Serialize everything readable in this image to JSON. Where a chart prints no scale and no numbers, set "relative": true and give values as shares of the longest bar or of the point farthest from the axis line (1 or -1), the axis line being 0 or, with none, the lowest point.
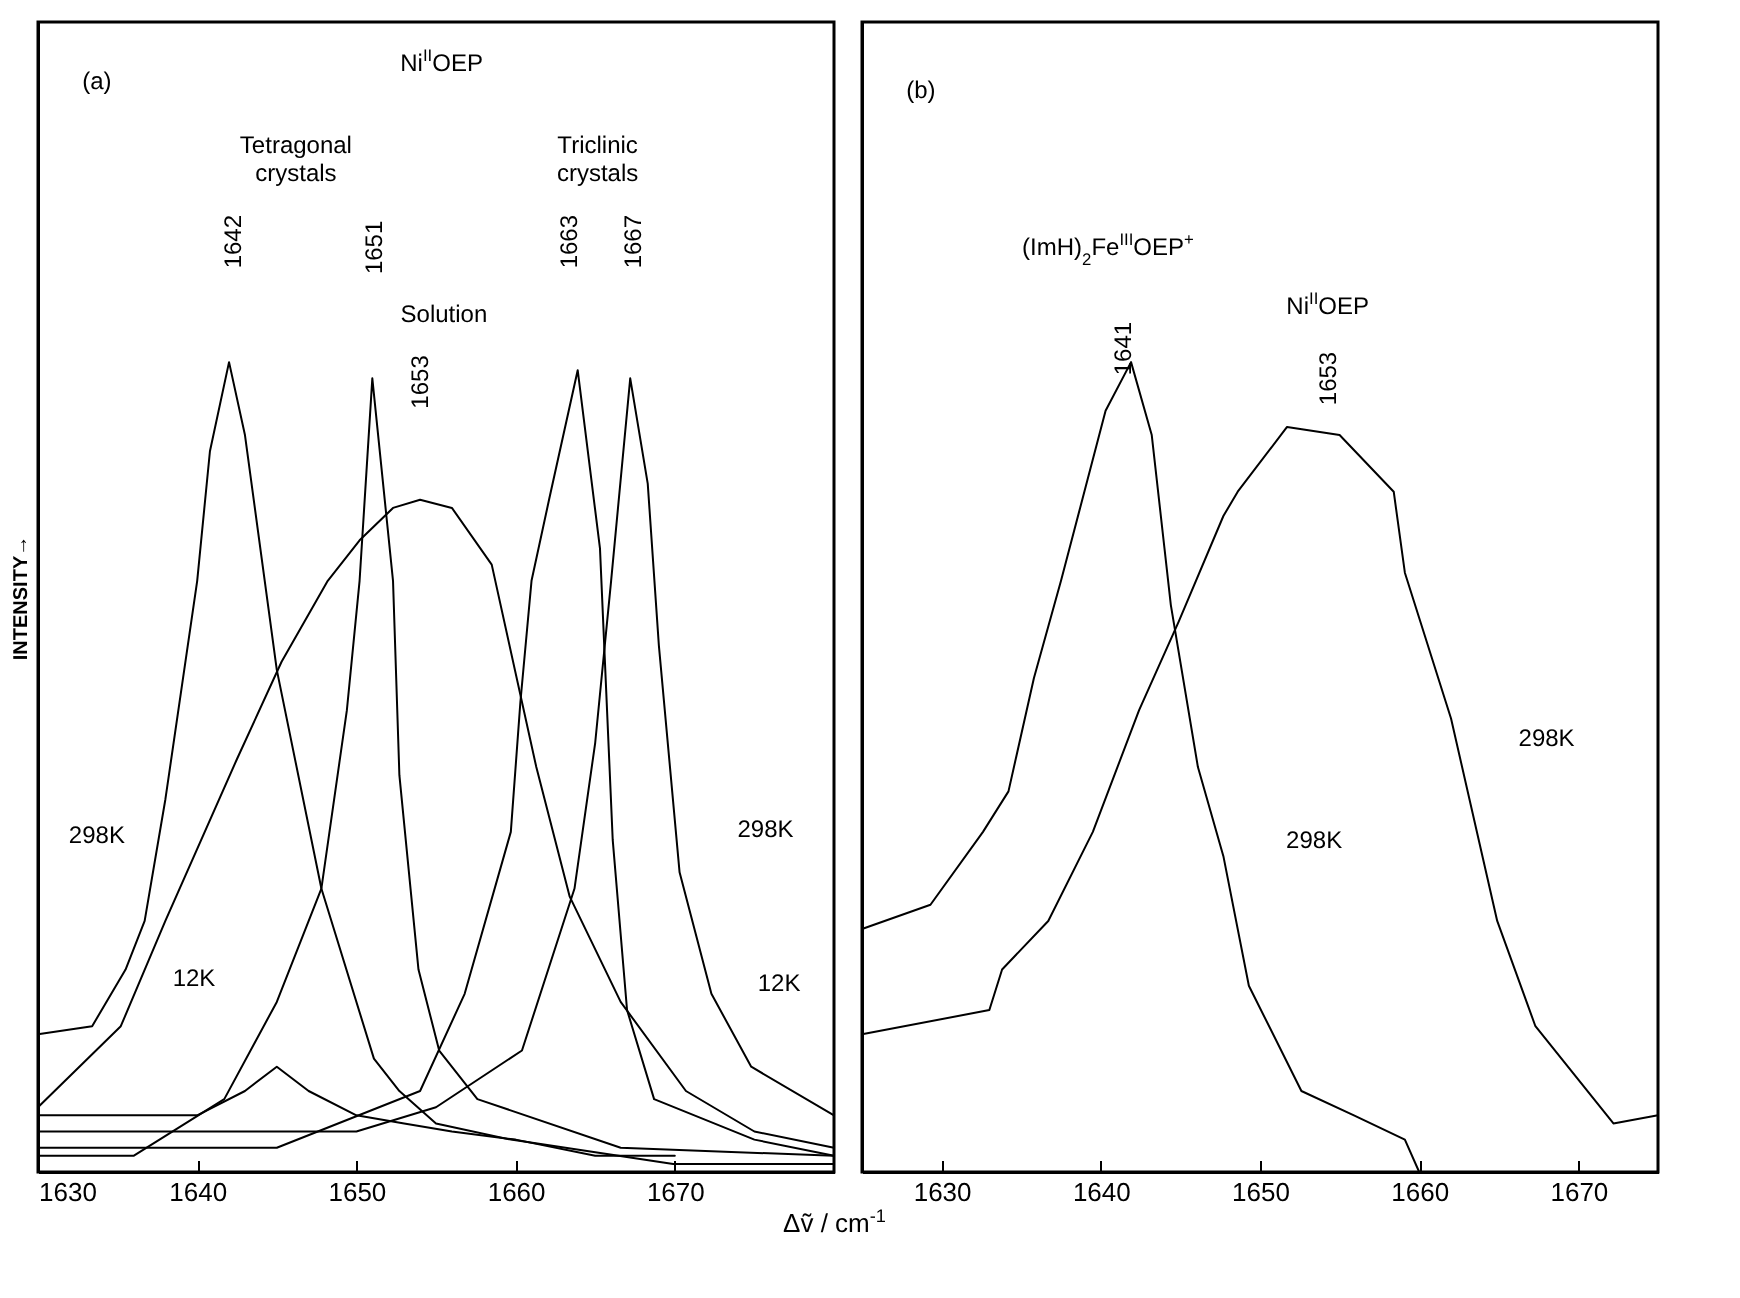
{
  "chart_data": [
    {
      "type": "line",
      "relative": true,
      "ylabel": "INTENSITY→",
      "xlabel": "Δṽ / cm$^{-1}$",
      "xlim": [
        1630,
        1680
      ],
      "xticks": [
        1630,
        1640,
        1650,
        1660,
        1670
      ],
      "tick_labels": "x",
      "annotations": [
        "(a)",
        "Ni$^{II}$OEP",
        "Tetragonal crystals",
        "Triclinic crystals",
        "1642",
        "1651",
        "1663",
        "1667",
        "Solution",
        "1653",
        "298K",
        "12K",
        "298K",
        "12K"
      ],
      "series": [
        {
          "color": "#000000",
          "x": [
            1630,
            1633.4,
            1635.5,
            1636.7,
            1638,
            1640,
            1640.8,
            1642,
            1643,
            1645,
            1647.8,
            1651.1,
            1652.7,
            1655,
            1659.7,
            1669.9,
            1680
          ],
          "values": [
            0.17,
            0.18,
            0.25,
            0.31,
            0.46,
            0.73,
            0.89,
            1.0,
            0.91,
            0.62,
            0.35,
            0.14,
            0.1,
            0.06,
            0.04,
            0.01,
            0.01
          ]
        },
        {
          "color": "#000000",
          "x": [
            1630,
            1635.2,
            1638,
            1642.5,
            1645.3,
            1648.2,
            1650.2,
            1652.3,
            1654,
            1656,
            1658.5,
            1661.3,
            1663.4,
            1666.6,
            1670.7,
            1675,
            1680
          ],
          "values": [
            0.08,
            0.18,
            0.31,
            0.51,
            0.63,
            0.73,
            0.78,
            0.82,
            0.83,
            0.82,
            0.75,
            0.5,
            0.34,
            0.21,
            0.1,
            0.05,
            0.03
          ]
        },
        {
          "color": "#000000",
          "x": [
            1630,
            1636,
            1641.7,
            1645,
            1647.8,
            1649.4,
            1650.2,
            1651,
            1652.3,
            1652.7,
            1653.9,
            1655.2,
            1657.6,
            1666.6,
            1680
          ],
          "values": [
            0.02,
            0.02,
            0.09,
            0.21,
            0.35,
            0.57,
            0.73,
            0.98,
            0.73,
            0.49,
            0.25,
            0.15,
            0.09,
            0.03,
            0.02
          ]
        },
        {
          "color": "#000000",
          "x": [
            1630,
            1635,
            1640,
            1643,
            1645,
            1647,
            1650,
            1653,
            1656,
            1660,
            1665,
            1670
          ],
          "values": [
            0.07,
            0.07,
            0.07,
            0.1,
            0.13,
            0.1,
            0.07,
            0.06,
            0.05,
            0.04,
            0.02,
            0.02
          ]
        },
        {
          "color": "#000000",
          "x": [
            1630,
            1645,
            1654,
            1656.8,
            1659.7,
            1660.3,
            1661,
            1662.1,
            1663.9,
            1665.3,
            1666.1,
            1667,
            1668.7,
            1675,
            1680
          ],
          "values": [
            0.03,
            0.03,
            0.1,
            0.22,
            0.42,
            0.58,
            0.73,
            0.83,
            0.99,
            0.77,
            0.41,
            0.2,
            0.09,
            0.04,
            0.02
          ]
        },
        {
          "color": "#000000",
          "x": [
            1630,
            1650,
            1655,
            1660.4,
            1663.7,
            1665,
            1666,
            1667.2,
            1668.3,
            1669,
            1670.3,
            1672.3,
            1674.8,
            1680
          ],
          "values": [
            0.05,
            0.05,
            0.08,
            0.15,
            0.35,
            0.53,
            0.73,
            0.98,
            0.85,
            0.65,
            0.37,
            0.22,
            0.13,
            0.07
          ]
        }
      ]
    },
    {
      "type": "line",
      "relative": true,
      "xlim": [
        1625,
        1675
      ],
      "xticks": [
        1630,
        1640,
        1650,
        1660,
        1670
      ],
      "tick_labels": "x",
      "annotations": [
        "(b)",
        "(ImH)$_{2}$Fe$^{III}$OEP$^{+}$",
        "1641",
        "Ni$^{II}$OEP",
        "1653",
        "298K",
        "298K"
      ],
      "series": [
        {
          "color": "#000000",
          "x": [
            1625,
            1629.3,
            1632.6,
            1634.2,
            1635.8,
            1637.5,
            1638.7,
            1640.3,
            1641.9,
            1643.2,
            1644,
            1644.4,
            1646.1,
            1647.7,
            1649.3,
            1652.6,
            1655.9,
            1659.1,
            1660
          ],
          "values": [
            0.3,
            0.33,
            0.42,
            0.47,
            0.61,
            0.73,
            0.82,
            0.94,
            1.0,
            0.91,
            0.77,
            0.7,
            0.5,
            0.39,
            0.23,
            0.1,
            0.07,
            0.04,
            0
          ]
        },
        {
          "color": "#000000",
          "x": [
            1625,
            1633,
            1633.8,
            1636.7,
            1639.5,
            1642.4,
            1644.9,
            1647.7,
            1648.6,
            1651.7,
            1655,
            1658.4,
            1659.1,
            1662,
            1664.9,
            1667.3,
            1672.2,
            1675
          ],
          "values": [
            0.17,
            0.2,
            0.25,
            0.31,
            0.42,
            0.57,
            0.68,
            0.81,
            0.84,
            0.92,
            0.91,
            0.84,
            0.74,
            0.56,
            0.31,
            0.18,
            0.06,
            0.07
          ]
        }
      ]
    }
  ]
}
